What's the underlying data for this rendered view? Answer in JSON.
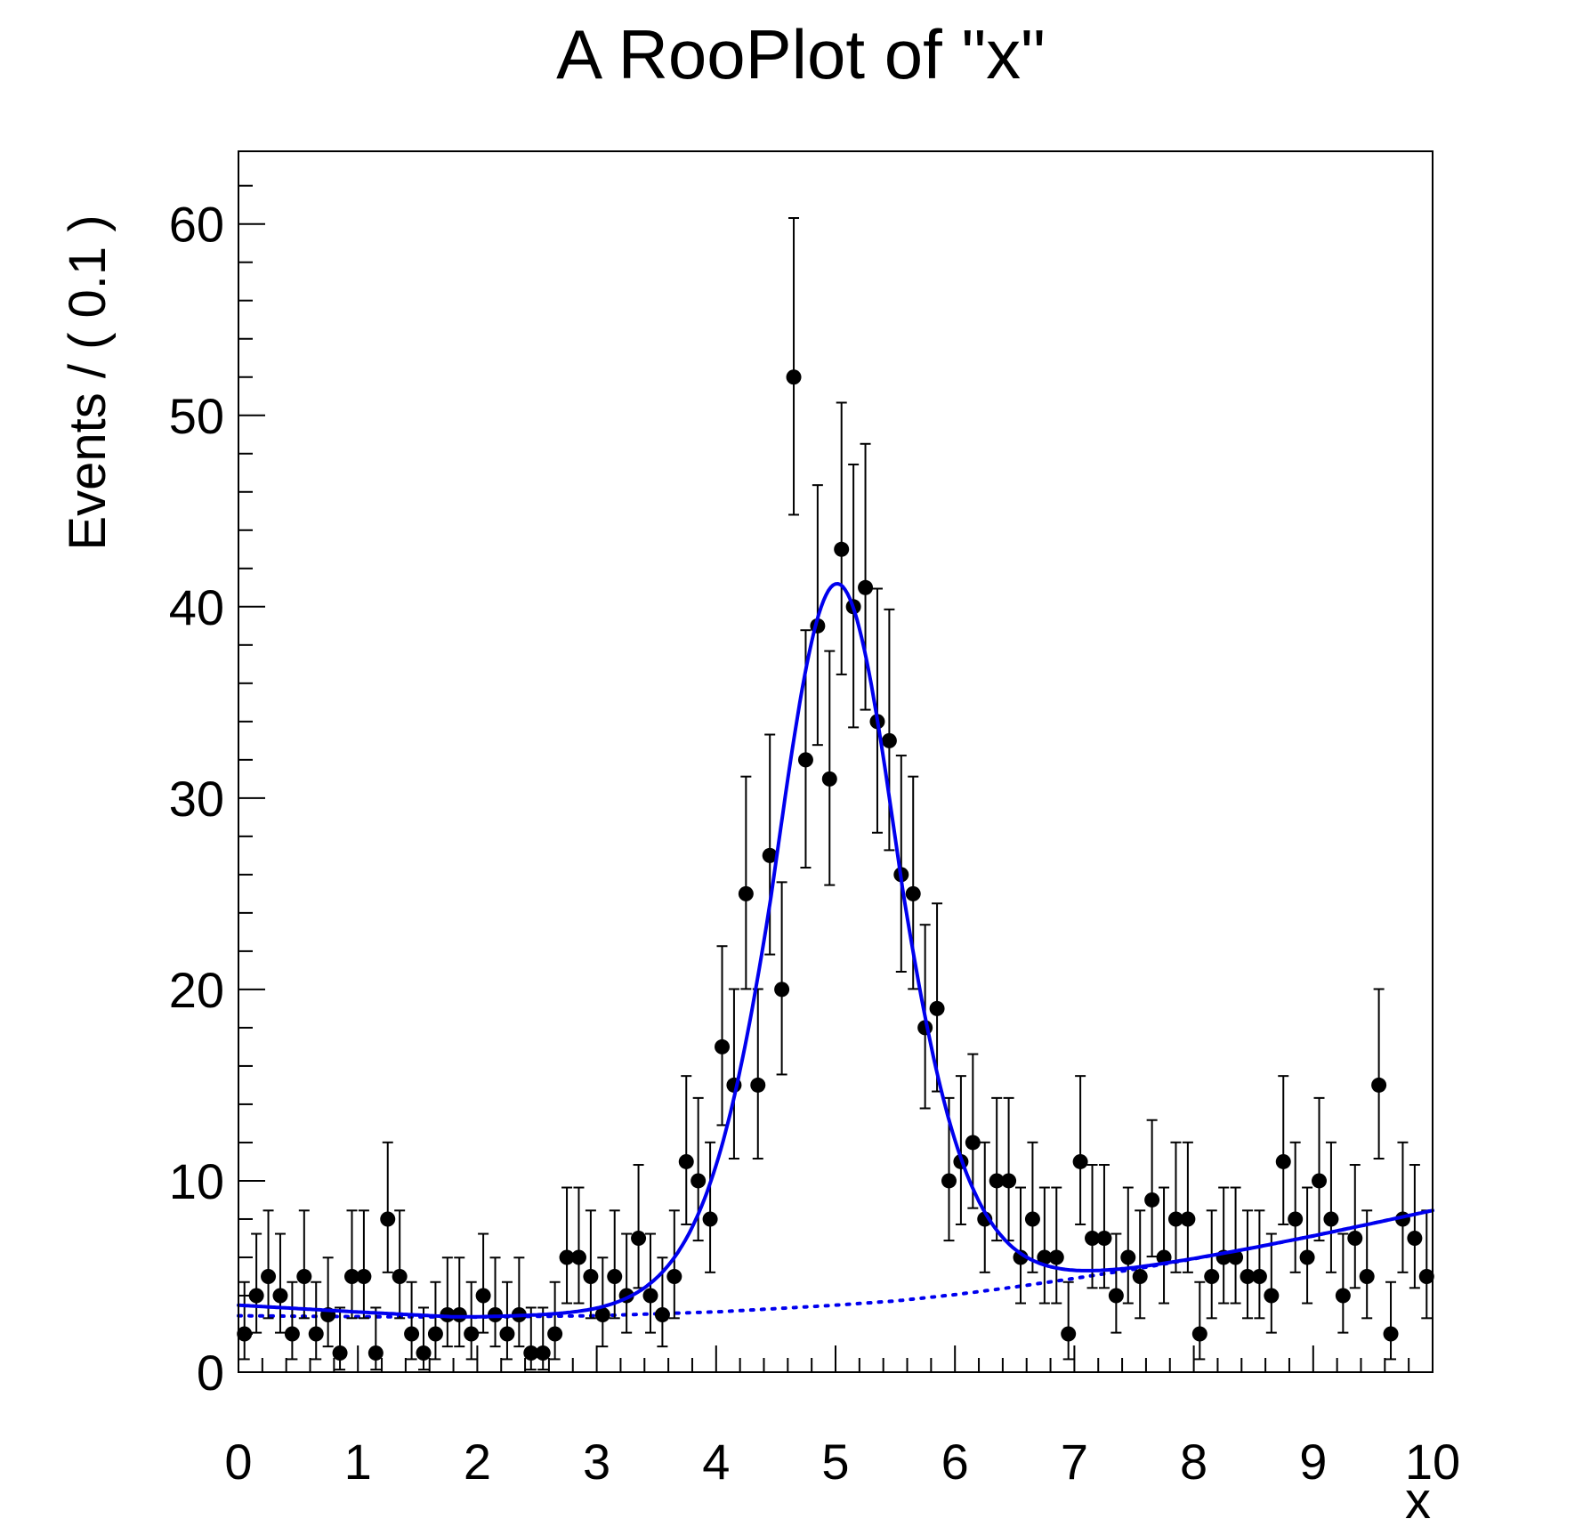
{
  "title": "A RooPlot of \"x\"",
  "axes": {
    "x_label": "x",
    "y_label": "Events / ( 0.1 )",
    "x_range": [
      0,
      10
    ],
    "y_range": [
      0,
      63.8
    ],
    "x_tick_values": [
      0,
      1,
      2,
      3,
      4,
      5,
      6,
      7,
      8,
      9,
      10
    ],
    "x_tick_labels": [
      "0",
      "1",
      "2",
      "3",
      "4",
      "5",
      "6",
      "7",
      "8",
      "9",
      "10"
    ],
    "x_minor_step": 0.2,
    "y_tick_values": [
      0,
      10,
      20,
      30,
      40,
      50,
      60
    ],
    "y_tick_labels": [
      "0",
      "10",
      "20",
      "30",
      "40",
      "50",
      "60"
    ],
    "y_minor_step": 2,
    "grid": "off",
    "legend": "none"
  },
  "chart_data": {
    "type": "scatter",
    "title": "A RooPlot of \"x\"",
    "xlabel": "x",
    "ylabel": "Events / ( 0.1 )",
    "xlim": [
      0,
      10
    ],
    "ylim": [
      0,
      63.8
    ],
    "bin_width": 0.1,
    "bin_start_center": 0.05,
    "series": [
      {
        "name": "data-histogram-points",
        "marker": "filled-circle",
        "color": "#000000",
        "error_bars": "poisson-asymmetric",
        "x_centers_rule": "0.05 + 0.1*i",
        "counts": [
          2,
          4,
          5,
          4,
          2,
          5,
          2,
          3,
          1,
          5,
          5,
          1,
          8,
          5,
          2,
          1,
          2,
          3,
          3,
          2,
          4,
          3,
          2,
          3,
          1,
          1,
          2,
          6,
          6,
          5,
          3,
          5,
          4,
          7,
          4,
          3,
          5,
          11,
          10,
          8,
          17,
          15,
          25,
          15,
          27,
          20,
          52,
          32,
          39,
          31,
          43,
          40,
          41,
          34,
          33,
          26,
          25,
          18,
          19,
          10,
          11,
          12,
          8,
          10,
          10,
          6,
          8,
          6,
          6,
          2,
          11,
          7,
          7,
          4,
          6,
          5,
          9,
          6,
          8,
          8,
          2,
          5,
          6,
          6,
          5,
          5,
          4,
          11,
          8,
          6,
          10,
          8,
          4,
          7,
          5,
          15,
          2,
          8,
          7,
          5
        ]
      },
      {
        "name": "total-model-fit-curve",
        "style": "solid",
        "color": "#0000ee",
        "shape": "gaussian-signal-plus-background",
        "gauss_amplitude": 37.7,
        "gauss_mean": 5.01,
        "gauss_sigma": 0.52,
        "sigma_tail_growth": 0.1,
        "sigma_tail_threshold": 0.55,
        "left_edge_extra": 0.55,
        "left_edge_range": 1.8,
        "peak_value": 41.2
      },
      {
        "name": "background-component-curve",
        "style": "dotted",
        "color": "#0000ee",
        "knots": [
          [
            0,
            2.95
          ],
          [
            1,
            2.9
          ],
          [
            2,
            2.88
          ],
          [
            3,
            2.95
          ],
          [
            4,
            3.15
          ],
          [
            4.5,
            3.32
          ],
          [
            5,
            3.5
          ],
          [
            5.5,
            3.72
          ],
          [
            6,
            4.05
          ],
          [
            6.5,
            4.45
          ],
          [
            7,
            4.9
          ],
          [
            7.5,
            5.38
          ],
          [
            8,
            5.92
          ],
          [
            8.5,
            6.5
          ],
          [
            9,
            7.12
          ],
          [
            9.5,
            7.78
          ],
          [
            10,
            8.45
          ]
        ]
      }
    ]
  }
}
